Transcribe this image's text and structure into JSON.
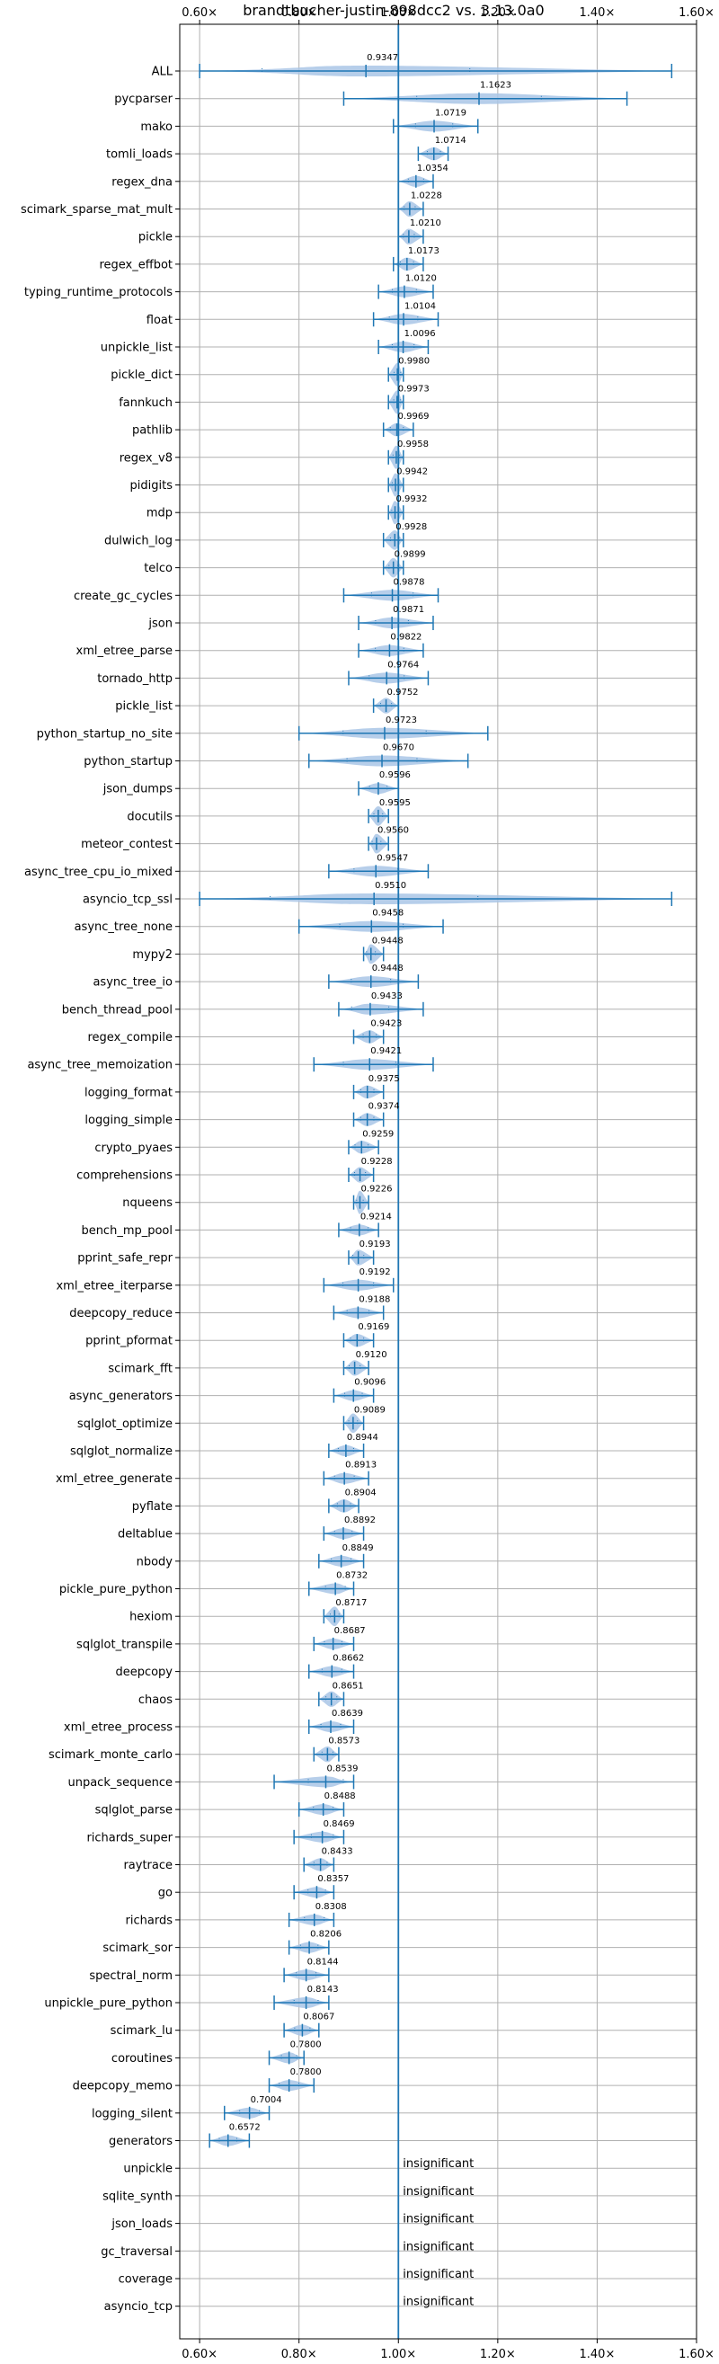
{
  "chart_data": {
    "type": "violin",
    "title": "brandtbucher-justin-898dcc2 vs. 3.13.0a0",
    "xlim": [
      0.56,
      1.6
    ],
    "x_ticks": [
      0.6,
      0.8,
      1.0,
      1.2,
      1.4,
      1.6
    ],
    "x_tick_labels": [
      "0.60×",
      "0.80×",
      "1.00×",
      "1.20×",
      "1.40×",
      "1.60×"
    ],
    "x_tick_position": "top-and-bottom",
    "reference_line": 1.0,
    "grid": true,
    "colors": {
      "violin": "#a9c6e6",
      "line": "#1f77b4"
    },
    "insignificant_label": "insignificant",
    "benchmarks": [
      {
        "name": "ALL",
        "value": 0.9347,
        "label": "0.9347",
        "min": 0.6,
        "max": 1.55
      },
      {
        "name": "pycparser",
        "value": 1.1623,
        "label": "1.1623",
        "min": 0.89,
        "max": 1.46
      },
      {
        "name": "mako",
        "value": 1.0719,
        "label": "1.0719",
        "min": 0.99,
        "max": 1.16
      },
      {
        "name": "tomli_loads",
        "value": 1.0714,
        "label": "1.0714",
        "min": 1.04,
        "max": 1.1
      },
      {
        "name": "regex_dna",
        "value": 1.0354,
        "label": "1.0354",
        "min": 1.0,
        "max": 1.07
      },
      {
        "name": "scimark_sparse_mat_mult",
        "value": 1.0228,
        "label": "1.0228",
        "min": 1.0,
        "max": 1.05
      },
      {
        "name": "pickle",
        "value": 1.021,
        "label": "1.0210",
        "min": 1.0,
        "max": 1.05
      },
      {
        "name": "regex_effbot",
        "value": 1.0173,
        "label": "1.0173",
        "min": 0.99,
        "max": 1.05
      },
      {
        "name": "typing_runtime_protocols",
        "value": 1.012,
        "label": "1.0120",
        "min": 0.96,
        "max": 1.07
      },
      {
        "name": "float",
        "value": 1.0104,
        "label": "1.0104",
        "min": 0.95,
        "max": 1.08
      },
      {
        "name": "unpickle_list",
        "value": 1.0096,
        "label": "1.0096",
        "min": 0.96,
        "max": 1.06
      },
      {
        "name": "pickle_dict",
        "value": 0.998,
        "label": "0.9980",
        "min": 0.98,
        "max": 1.01
      },
      {
        "name": "fannkuch",
        "value": 0.9973,
        "label": "0.9973",
        "min": 0.98,
        "max": 1.01
      },
      {
        "name": "pathlib",
        "value": 0.9969,
        "label": "0.9969",
        "min": 0.97,
        "max": 1.03
      },
      {
        "name": "regex_v8",
        "value": 0.9958,
        "label": "0.9958",
        "min": 0.98,
        "max": 1.01
      },
      {
        "name": "pidigits",
        "value": 0.9942,
        "label": "0.9942",
        "min": 0.98,
        "max": 1.01
      },
      {
        "name": "mdp",
        "value": 0.9932,
        "label": "0.9932",
        "min": 0.98,
        "max": 1.01
      },
      {
        "name": "dulwich_log",
        "value": 0.9928,
        "label": "0.9928",
        "min": 0.97,
        "max": 1.01
      },
      {
        "name": "telco",
        "value": 0.9899,
        "label": "0.9899",
        "min": 0.97,
        "max": 1.01
      },
      {
        "name": "create_gc_cycles",
        "value": 0.9878,
        "label": "0.9878",
        "min": 0.89,
        "max": 1.08
      },
      {
        "name": "json",
        "value": 0.9871,
        "label": "0.9871",
        "min": 0.92,
        "max": 1.07
      },
      {
        "name": "xml_etree_parse",
        "value": 0.9822,
        "label": "0.9822",
        "min": 0.92,
        "max": 1.05
      },
      {
        "name": "tornado_http",
        "value": 0.9764,
        "label": "0.9764",
        "min": 0.9,
        "max": 1.06
      },
      {
        "name": "pickle_list",
        "value": 0.9752,
        "label": "0.9752",
        "min": 0.95,
        "max": 1.0
      },
      {
        "name": "python_startup_no_site",
        "value": 0.9723,
        "label": "0.9723",
        "min": 0.8,
        "max": 1.18
      },
      {
        "name": "python_startup",
        "value": 0.967,
        "label": "0.9670",
        "min": 0.82,
        "max": 1.14
      },
      {
        "name": "json_dumps",
        "value": 0.9596,
        "label": "0.9596",
        "min": 0.92,
        "max": 1.0
      },
      {
        "name": "docutils",
        "value": 0.9595,
        "label": "0.9595",
        "min": 0.94,
        "max": 0.98
      },
      {
        "name": "meteor_contest",
        "value": 0.956,
        "label": "0.9560",
        "min": 0.94,
        "max": 0.98
      },
      {
        "name": "async_tree_cpu_io_mixed",
        "value": 0.9547,
        "label": "0.9547",
        "min": 0.86,
        "max": 1.06
      },
      {
        "name": "asyncio_tcp_ssl",
        "value": 0.951,
        "label": "0.9510",
        "min": 0.6,
        "max": 1.55
      },
      {
        "name": "async_tree_none",
        "value": 0.9458,
        "label": "0.9458",
        "min": 0.8,
        "max": 1.09
      },
      {
        "name": "mypy2",
        "value": 0.9448,
        "label": "0.9448",
        "min": 0.93,
        "max": 0.97
      },
      {
        "name": "async_tree_io",
        "value": 0.9448,
        "label": "0.9448",
        "min": 0.86,
        "max": 1.04
      },
      {
        "name": "bench_thread_pool",
        "value": 0.9433,
        "label": "0.9433",
        "min": 0.88,
        "max": 1.05
      },
      {
        "name": "regex_compile",
        "value": 0.9423,
        "label": "0.9423",
        "min": 0.91,
        "max": 0.97
      },
      {
        "name": "async_tree_memoization",
        "value": 0.9421,
        "label": "0.9421",
        "min": 0.83,
        "max": 1.07
      },
      {
        "name": "logging_format",
        "value": 0.9375,
        "label": "0.9375",
        "min": 0.91,
        "max": 0.97
      },
      {
        "name": "logging_simple",
        "value": 0.9374,
        "label": "0.9374",
        "min": 0.91,
        "max": 0.97
      },
      {
        "name": "crypto_pyaes",
        "value": 0.9259,
        "label": "0.9259",
        "min": 0.9,
        "max": 0.96
      },
      {
        "name": "comprehensions",
        "value": 0.9228,
        "label": "0.9228",
        "min": 0.9,
        "max": 0.95
      },
      {
        "name": "nqueens",
        "value": 0.9226,
        "label": "0.9226",
        "min": 0.91,
        "max": 0.94
      },
      {
        "name": "bench_mp_pool",
        "value": 0.9214,
        "label": "0.9214",
        "min": 0.88,
        "max": 0.96
      },
      {
        "name": "pprint_safe_repr",
        "value": 0.9193,
        "label": "0.9193",
        "min": 0.9,
        "max": 0.95
      },
      {
        "name": "xml_etree_iterparse",
        "value": 0.9192,
        "label": "0.9192",
        "min": 0.85,
        "max": 0.99
      },
      {
        "name": "deepcopy_reduce",
        "value": 0.9188,
        "label": "0.9188",
        "min": 0.87,
        "max": 0.97
      },
      {
        "name": "pprint_pformat",
        "value": 0.9169,
        "label": "0.9169",
        "min": 0.89,
        "max": 0.95
      },
      {
        "name": "scimark_fft",
        "value": 0.912,
        "label": "0.9120",
        "min": 0.89,
        "max": 0.94
      },
      {
        "name": "async_generators",
        "value": 0.9096,
        "label": "0.9096",
        "min": 0.87,
        "max": 0.95
      },
      {
        "name": "sqlglot_optimize",
        "value": 0.9089,
        "label": "0.9089",
        "min": 0.89,
        "max": 0.93
      },
      {
        "name": "sqlglot_normalize",
        "value": 0.8944,
        "label": "0.8944",
        "min": 0.86,
        "max": 0.93
      },
      {
        "name": "xml_etree_generate",
        "value": 0.8913,
        "label": "0.8913",
        "min": 0.85,
        "max": 0.94
      },
      {
        "name": "pyflate",
        "value": 0.8904,
        "label": "0.8904",
        "min": 0.86,
        "max": 0.92
      },
      {
        "name": "deltablue",
        "value": 0.8892,
        "label": "0.8892",
        "min": 0.85,
        "max": 0.93
      },
      {
        "name": "nbody",
        "value": 0.8849,
        "label": "0.8849",
        "min": 0.84,
        "max": 0.93
      },
      {
        "name": "pickle_pure_python",
        "value": 0.8732,
        "label": "0.8732",
        "min": 0.82,
        "max": 0.91
      },
      {
        "name": "hexiom",
        "value": 0.8717,
        "label": "0.8717",
        "min": 0.85,
        "max": 0.89
      },
      {
        "name": "sqlglot_transpile",
        "value": 0.8687,
        "label": "0.8687",
        "min": 0.83,
        "max": 0.91
      },
      {
        "name": "deepcopy",
        "value": 0.8662,
        "label": "0.8662",
        "min": 0.82,
        "max": 0.91
      },
      {
        "name": "chaos",
        "value": 0.8651,
        "label": "0.8651",
        "min": 0.84,
        "max": 0.89
      },
      {
        "name": "xml_etree_process",
        "value": 0.8639,
        "label": "0.8639",
        "min": 0.82,
        "max": 0.91
      },
      {
        "name": "scimark_monte_carlo",
        "value": 0.8573,
        "label": "0.8573",
        "min": 0.83,
        "max": 0.88
      },
      {
        "name": "unpack_sequence",
        "value": 0.8539,
        "label": "0.8539",
        "min": 0.75,
        "max": 0.91
      },
      {
        "name": "sqlglot_parse",
        "value": 0.8488,
        "label": "0.8488",
        "min": 0.8,
        "max": 0.89
      },
      {
        "name": "richards_super",
        "value": 0.8469,
        "label": "0.8469",
        "min": 0.79,
        "max": 0.89
      },
      {
        "name": "raytrace",
        "value": 0.8433,
        "label": "0.8433",
        "min": 0.81,
        "max": 0.87
      },
      {
        "name": "go",
        "value": 0.8357,
        "label": "0.8357",
        "min": 0.79,
        "max": 0.87
      },
      {
        "name": "richards",
        "value": 0.8308,
        "label": "0.8308",
        "min": 0.78,
        "max": 0.87
      },
      {
        "name": "scimark_sor",
        "value": 0.8206,
        "label": "0.8206",
        "min": 0.78,
        "max": 0.86
      },
      {
        "name": "spectral_norm",
        "value": 0.8144,
        "label": "0.8144",
        "min": 0.77,
        "max": 0.86
      },
      {
        "name": "unpickle_pure_python",
        "value": 0.8143,
        "label": "0.8143",
        "min": 0.75,
        "max": 0.86
      },
      {
        "name": "scimark_lu",
        "value": 0.8067,
        "label": "0.8067",
        "min": 0.77,
        "max": 0.84
      },
      {
        "name": "coroutines",
        "value": 0.78,
        "label": "0.7800",
        "min": 0.74,
        "max": 0.81
      },
      {
        "name": "deepcopy_memo",
        "value": 0.78,
        "label": "0.7800",
        "min": 0.74,
        "max": 0.83
      },
      {
        "name": "logging_silent",
        "value": 0.7004,
        "label": "0.7004",
        "min": 0.65,
        "max": 0.74
      },
      {
        "name": "generators",
        "value": 0.6572,
        "label": "0.6572",
        "min": 0.62,
        "max": 0.7
      },
      {
        "name": "unpickle",
        "value": null,
        "label": null,
        "insignificant": true
      },
      {
        "name": "sqlite_synth",
        "value": null,
        "label": null,
        "insignificant": true
      },
      {
        "name": "json_loads",
        "value": null,
        "label": null,
        "insignificant": true
      },
      {
        "name": "gc_traversal",
        "value": null,
        "label": null,
        "insignificant": true
      },
      {
        "name": "coverage",
        "value": null,
        "label": null,
        "insignificant": true
      },
      {
        "name": "asyncio_tcp",
        "value": null,
        "label": null,
        "insignificant": true
      }
    ]
  }
}
